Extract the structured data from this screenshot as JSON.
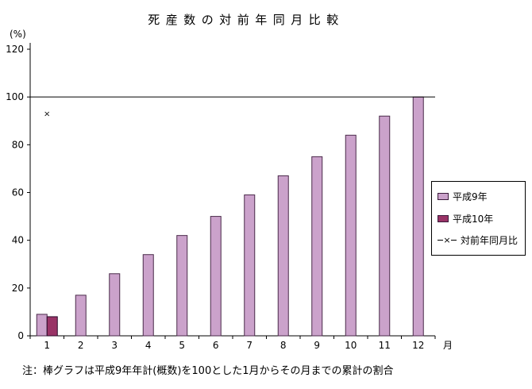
{
  "title": "死産数の対前年同月比較",
  "note": "注：棒グラフは平成9年年計(概数)を100とした1月からその月までの累計の割合",
  "colors": {
    "h9_fill": "#CBA2CB",
    "h9_border": "#4a2a4a",
    "h10_fill": "#993366",
    "h10_border": "#2a0a2a",
    "axis": "#000000",
    "marker": "#000000",
    "background": "#ffffff"
  },
  "legend": {
    "items": [
      {
        "label": "平成9年",
        "type": "box"
      },
      {
        "label": "平成10年",
        "type": "box"
      },
      {
        "label": "対前年同月比",
        "type": "line-x",
        "marker": "×"
      }
    ]
  },
  "chart_data": {
    "type": "bar",
    "title": "死産数の対前年同月比較",
    "xlabel": "月",
    "ylabel": "(%)",
    "categories": [
      "1",
      "2",
      "3",
      "4",
      "5",
      "6",
      "7",
      "8",
      "9",
      "10",
      "11",
      "12"
    ],
    "series": [
      {
        "name": "平成9年",
        "type": "bar",
        "values": [
          9,
          17,
          26,
          34,
          42,
          50,
          59,
          67,
          75,
          84,
          92,
          100
        ]
      },
      {
        "name": "平成10年",
        "type": "bar",
        "values": [
          8,
          null,
          null,
          null,
          null,
          null,
          null,
          null,
          null,
          null,
          null,
          null
        ]
      },
      {
        "name": "対前年同月比",
        "type": "scatter",
        "values": [
          93,
          null,
          null,
          null,
          null,
          null,
          null,
          null,
          null,
          null,
          null,
          null
        ]
      }
    ],
    "ylim": [
      0,
      120
    ],
    "yticks": [
      0,
      20,
      40,
      60,
      80,
      100,
      120
    ],
    "reference_line": 100,
    "grid": false,
    "legend_position": "right"
  }
}
